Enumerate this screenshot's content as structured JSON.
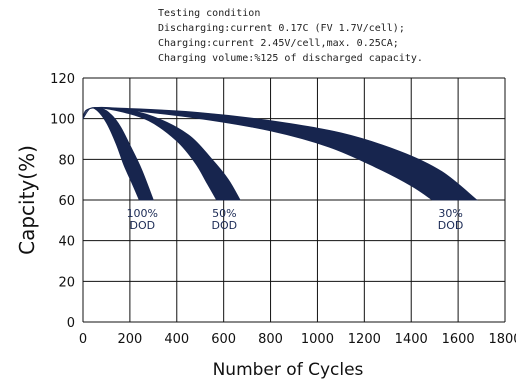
{
  "conditions": {
    "title": "Testing condition",
    "lines": [
      "Discharging:current 0.17C (FV 1.7V/cell);",
      "Charging:current 2.45V/cell,max. 0.25CA;",
      "Charging volume:%125 of discharged capacity."
    ]
  },
  "colors": {
    "band": "#17254e",
    "grid": "#111111"
  },
  "chart_data": {
    "type": "area",
    "xlabel": "Number of Cycles",
    "ylabel": "Capcity(%)",
    "xlim": [
      0,
      1800
    ],
    "ylim": [
      0,
      120
    ],
    "xticks": [
      "0",
      "200",
      "400",
      "600",
      "800",
      "1000",
      "1200",
      "1400",
      "1600",
      "1800"
    ],
    "yticks": [
      "0",
      "20",
      "40",
      "60",
      "80",
      "100",
      "120"
    ],
    "grid": true,
    "series": [
      {
        "name": "100% DOD",
        "label_lines": [
          "100%",
          "DOD"
        ],
        "upper": [
          [
            0,
            100
          ],
          [
            30,
            105
          ],
          [
            80,
            105
          ],
          [
            120,
            102
          ],
          [
            160,
            96
          ],
          [
            200,
            87
          ],
          [
            250,
            75
          ],
          [
            300,
            60
          ]
        ],
        "lower": [
          [
            0,
            100
          ],
          [
            30,
            105
          ],
          [
            60,
            104
          ],
          [
            100,
            98
          ],
          [
            140,
            88
          ],
          [
            175,
            77
          ],
          [
            210,
            68
          ],
          [
            240,
            60
          ]
        ]
      },
      {
        "name": "50% DOD",
        "label_lines": [
          "50%",
          "DOD"
        ],
        "upper": [
          [
            0,
            100
          ],
          [
            30,
            105
          ],
          [
            150,
            105
          ],
          [
            300,
            101
          ],
          [
            450,
            92
          ],
          [
            550,
            80
          ],
          [
            620,
            70
          ],
          [
            670,
            60
          ]
        ],
        "lower": [
          [
            0,
            100
          ],
          [
            30,
            105
          ],
          [
            140,
            104
          ],
          [
            280,
            99
          ],
          [
            400,
            89
          ],
          [
            480,
            78
          ],
          [
            530,
            68
          ],
          [
            570,
            60
          ]
        ]
      },
      {
        "name": "30% DOD",
        "label_lines": [
          "30%",
          "DOD"
        ],
        "upper": [
          [
            0,
            100
          ],
          [
            30,
            105
          ],
          [
            200,
            105
          ],
          [
            500,
            103
          ],
          [
            800,
            99
          ],
          [
            1100,
            93
          ],
          [
            1350,
            84
          ],
          [
            1530,
            74
          ],
          [
            1680,
            60
          ]
        ],
        "lower": [
          [
            0,
            100
          ],
          [
            30,
            105
          ],
          [
            200,
            104
          ],
          [
            500,
            100
          ],
          [
            800,
            94
          ],
          [
            1050,
            86
          ],
          [
            1250,
            76
          ],
          [
            1400,
            67
          ],
          [
            1490,
            60
          ]
        ]
      }
    ]
  }
}
